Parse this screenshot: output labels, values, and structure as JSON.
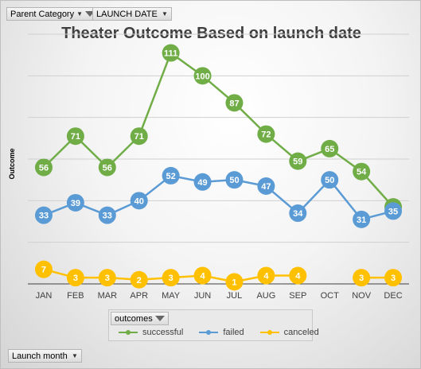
{
  "filters": {
    "parent_category_label": "Parent Category",
    "launch_date_label": "LAUNCH DATE",
    "launch_month_label": "Launch month",
    "outcomes_label": "outcomes"
  },
  "chart_data": {
    "type": "line",
    "title": "Theater Outcome Based on launch date",
    "xlabel": "",
    "ylabel": "Outcome",
    "categories": [
      "JAN",
      "FEB",
      "MAR",
      "APR",
      "MAY",
      "JUN",
      "JUL",
      "AUG",
      "SEP",
      "OCT",
      "NOV",
      "DEC"
    ],
    "ylim": [
      0,
      120
    ],
    "grid": true,
    "legend_position": "bottom",
    "series": [
      {
        "name": "successful",
        "color": "#70ad47",
        "values": [
          56,
          71,
          56,
          71,
          111,
          100,
          87,
          72,
          59,
          65,
          54,
          37
        ]
      },
      {
        "name": "failed",
        "color": "#5b9bd5",
        "values": [
          33,
          39,
          33,
          40,
          52,
          49,
          50,
          47,
          34,
          50,
          31,
          35
        ]
      },
      {
        "name": "canceled",
        "color": "#ffc000",
        "values": [
          7,
          3,
          3,
          2,
          3,
          4,
          1,
          4,
          4,
          null,
          3,
          3
        ]
      }
    ]
  }
}
